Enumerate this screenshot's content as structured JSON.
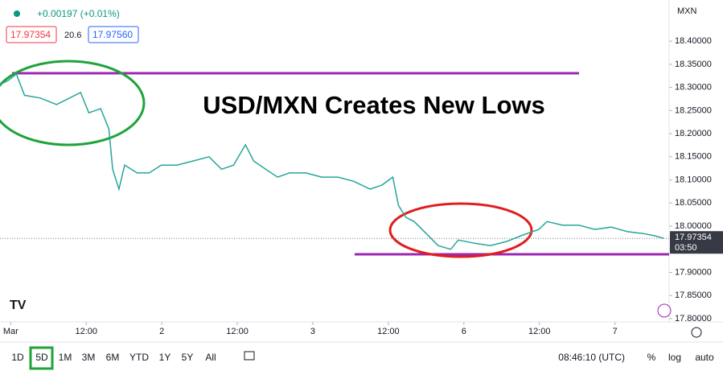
{
  "chart_data": {
    "type": "line",
    "title": "USD/MXN Creates New Lows",
    "currency": "MXN",
    "change": "+0.00197 (+0.01%)",
    "bid": "17.97354",
    "spread": "20.6",
    "ask": "17.97560",
    "last_price_label": "17.97354",
    "countdown": "03:50",
    "xlim": [
      -1.7,
      104.6
    ],
    "ylim": [
      17.793,
      18.489
    ],
    "xticks": [
      {
        "value": 0,
        "label": "Mar"
      },
      {
        "value": 12,
        "label": "12:00"
      },
      {
        "value": 24,
        "label": "2"
      },
      {
        "value": 36,
        "label": "12:00"
      },
      {
        "value": 48,
        "label": "3"
      },
      {
        "value": 60,
        "label": "12:00"
      },
      {
        "value": 72,
        "label": "6"
      },
      {
        "value": 84,
        "label": "12:00"
      },
      {
        "value": 96,
        "label": "7"
      }
    ],
    "yticks": [
      {
        "value": 18.4,
        "label": "18.40000"
      },
      {
        "value": 18.35,
        "label": "18.35000"
      },
      {
        "value": 18.3,
        "label": "18.30000"
      },
      {
        "value": 18.25,
        "label": "18.25000"
      },
      {
        "value": 18.2,
        "label": "18.20000"
      },
      {
        "value": 18.15,
        "label": "18.15000"
      },
      {
        "value": 18.1,
        "label": "18.10000"
      },
      {
        "value": 18.05,
        "label": "18.05000"
      },
      {
        "value": 18.0,
        "label": "18.00000"
      },
      {
        "value": 17.95,
        "label": "17.95000"
      },
      {
        "value": 17.9,
        "label": "17.90000"
      },
      {
        "value": 17.85,
        "label": "17.85000"
      },
      {
        "value": 17.8,
        "label": "17.80000"
      }
    ],
    "series": [
      {
        "name": "USD/MXN",
        "color": "#26a69a",
        "x": [
          -1.7,
          -0.4,
          0.9,
          2.2,
          4.7,
          7.3,
          9.8,
          11.1,
          12.4,
          14.3,
          15.6,
          16.2,
          17.2,
          18.1,
          20.1,
          22.0,
          23.9,
          26.4,
          29.0,
          31.5,
          33.5,
          35.4,
          37.3,
          38.6,
          40.5,
          42.4,
          44.3,
          46.9,
          49.4,
          52.0,
          54.5,
          57.1,
          59.0,
          60.7,
          61.6,
          62.8,
          64.1,
          66.0,
          67.9,
          69.9,
          71.1,
          73.7,
          76.2,
          78.8,
          81.4,
          83.9,
          85.2,
          87.7,
          90.3,
          92.8,
          95.4,
          98.0,
          100.5,
          102.4,
          103.7
        ],
        "values": [
          18.306,
          18.315,
          18.329,
          18.283,
          18.277,
          18.263,
          18.28,
          18.289,
          18.245,
          18.254,
          18.21,
          18.123,
          18.08,
          18.132,
          18.115,
          18.115,
          18.132,
          18.132,
          18.141,
          18.15,
          18.123,
          18.132,
          18.176,
          18.141,
          18.123,
          18.106,
          18.115,
          18.115,
          18.106,
          18.106,
          18.097,
          18.08,
          18.089,
          18.106,
          18.045,
          18.019,
          18.01,
          17.984,
          17.958,
          17.95,
          17.97,
          17.963,
          17.958,
          17.967,
          17.981,
          17.993,
          18.01,
          18.002,
          18.002,
          17.993,
          17.998,
          17.988,
          17.984,
          17.979,
          17.97354
        ]
      }
    ]
  },
  "toolbar": {
    "ranges": [
      "1D",
      "5D",
      "1M",
      "3M",
      "6M",
      "YTD",
      "1Y",
      "5Y",
      "All"
    ],
    "clock": "08:46:10 (UTC)",
    "options": [
      "%",
      "log",
      "auto"
    ]
  }
}
